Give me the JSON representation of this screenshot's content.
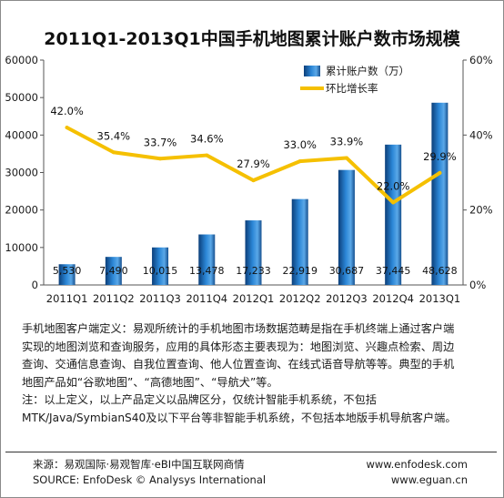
{
  "chart_data": {
    "type": "bar",
    "title": "2011Q1-2013Q1中国手机地图累计账户数市场规模",
    "categories": [
      "2011Q1",
      "2011Q2",
      "2011Q3",
      "2011Q4",
      "2012Q1",
      "2012Q2",
      "2012Q3",
      "2012Q4",
      "2013Q1"
    ],
    "series": [
      {
        "name": "累计账户数（万）",
        "type": "bar",
        "axis": "left",
        "values": [
          5530,
          7490,
          10015,
          13478,
          17233,
          22919,
          30687,
          37445,
          48628
        ],
        "labels": [
          "5,530",
          "7,490",
          "10,015",
          "13,478",
          "17,233",
          "22,919",
          "30,687",
          "37,445",
          "48,628"
        ],
        "color": "#1f6fb8"
      },
      {
        "name": "环比增长率",
        "type": "line",
        "axis": "right",
        "values": [
          42.0,
          35.4,
          33.7,
          34.6,
          27.9,
          33.0,
          33.9,
          22.0,
          29.9
        ],
        "labels": [
          "42.0%",
          "35.4%",
          "33.7%",
          "34.6%",
          "27.9%",
          "33.0%",
          "33.9%",
          "22.0%",
          "29.9%"
        ],
        "color": "#f5c000"
      }
    ],
    "y_left": {
      "range": [
        0,
        60000
      ],
      "ticks": [
        "0",
        "10000",
        "20000",
        "30000",
        "40000",
        "50000",
        "60000"
      ]
    },
    "y_right": {
      "range": [
        0,
        60
      ],
      "ticks": [
        "0%",
        "20%",
        "40%",
        "60%"
      ]
    },
    "grid": false,
    "legend_position": "top-right"
  },
  "description": {
    "lines": [
      "手机地图客户端定义：易观所统计的手机地图市场数据范畴是指在手机终端上通过客户端",
      "实现的地图浏览和查询服务，应用的具体形态主要表现为：地图浏览、兴趣点检索、周边",
      "查询、交通信息查询、自我位置查询、他人位置查询、在线式语音导航等等。典型的手机",
      "地图产品如“谷歌地图”、“高德地图”、“导航犬”等。",
      "注：以上定义，以上产品定义以品牌区分，仅统计智能手机系统，不包括",
      "MTK/Java/SymbianS40及以下平台等非智能手机系统，不包括本地版手机导航客户端。"
    ]
  },
  "footer": {
    "source_cn": "来源：易观国际·易观智库·eBI中国互联网商情",
    "source_en": "SOURCE: EnfoDesk © Analysys International",
    "url1": "www.enfodesk.com",
    "url2": "www.eguan.cn"
  }
}
